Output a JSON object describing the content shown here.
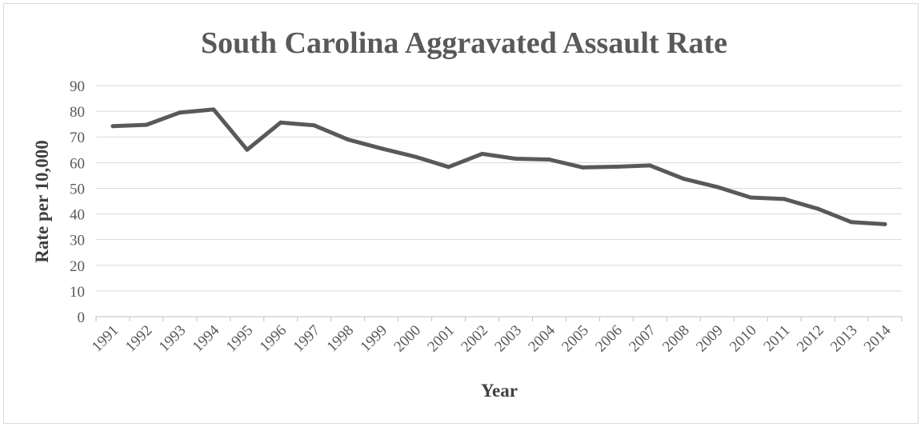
{
  "chart_data": {
    "type": "line",
    "title": "South Carolina Aggravated Assault Rate",
    "xlabel": "Year",
    "ylabel": "Rate per 10,000",
    "ylim": [
      0,
      90
    ],
    "yticks": [
      0,
      10,
      20,
      30,
      40,
      50,
      60,
      70,
      80,
      90
    ],
    "grid": true,
    "legend": "none",
    "categories": [
      "1991",
      "1992",
      "1993",
      "1994",
      "1995",
      "1996",
      "1997",
      "1998",
      "1999",
      "2000",
      "2001",
      "2002",
      "2003",
      "2004",
      "2005",
      "2006",
      "2007",
      "2008",
      "2009",
      "2010",
      "2011",
      "2012",
      "2013",
      "2014"
    ],
    "series": [
      {
        "values": [
          74.2,
          74.7,
          79.5,
          80.7,
          65.0,
          75.6,
          74.5,
          69.0,
          65.5,
          62.3,
          58.3,
          63.4,
          61.5,
          61.2,
          58.1,
          58.4,
          58.9,
          53.7,
          50.5,
          46.4,
          45.8,
          42.0,
          36.8,
          36.0
        ],
        "color": "#595959"
      }
    ]
  }
}
